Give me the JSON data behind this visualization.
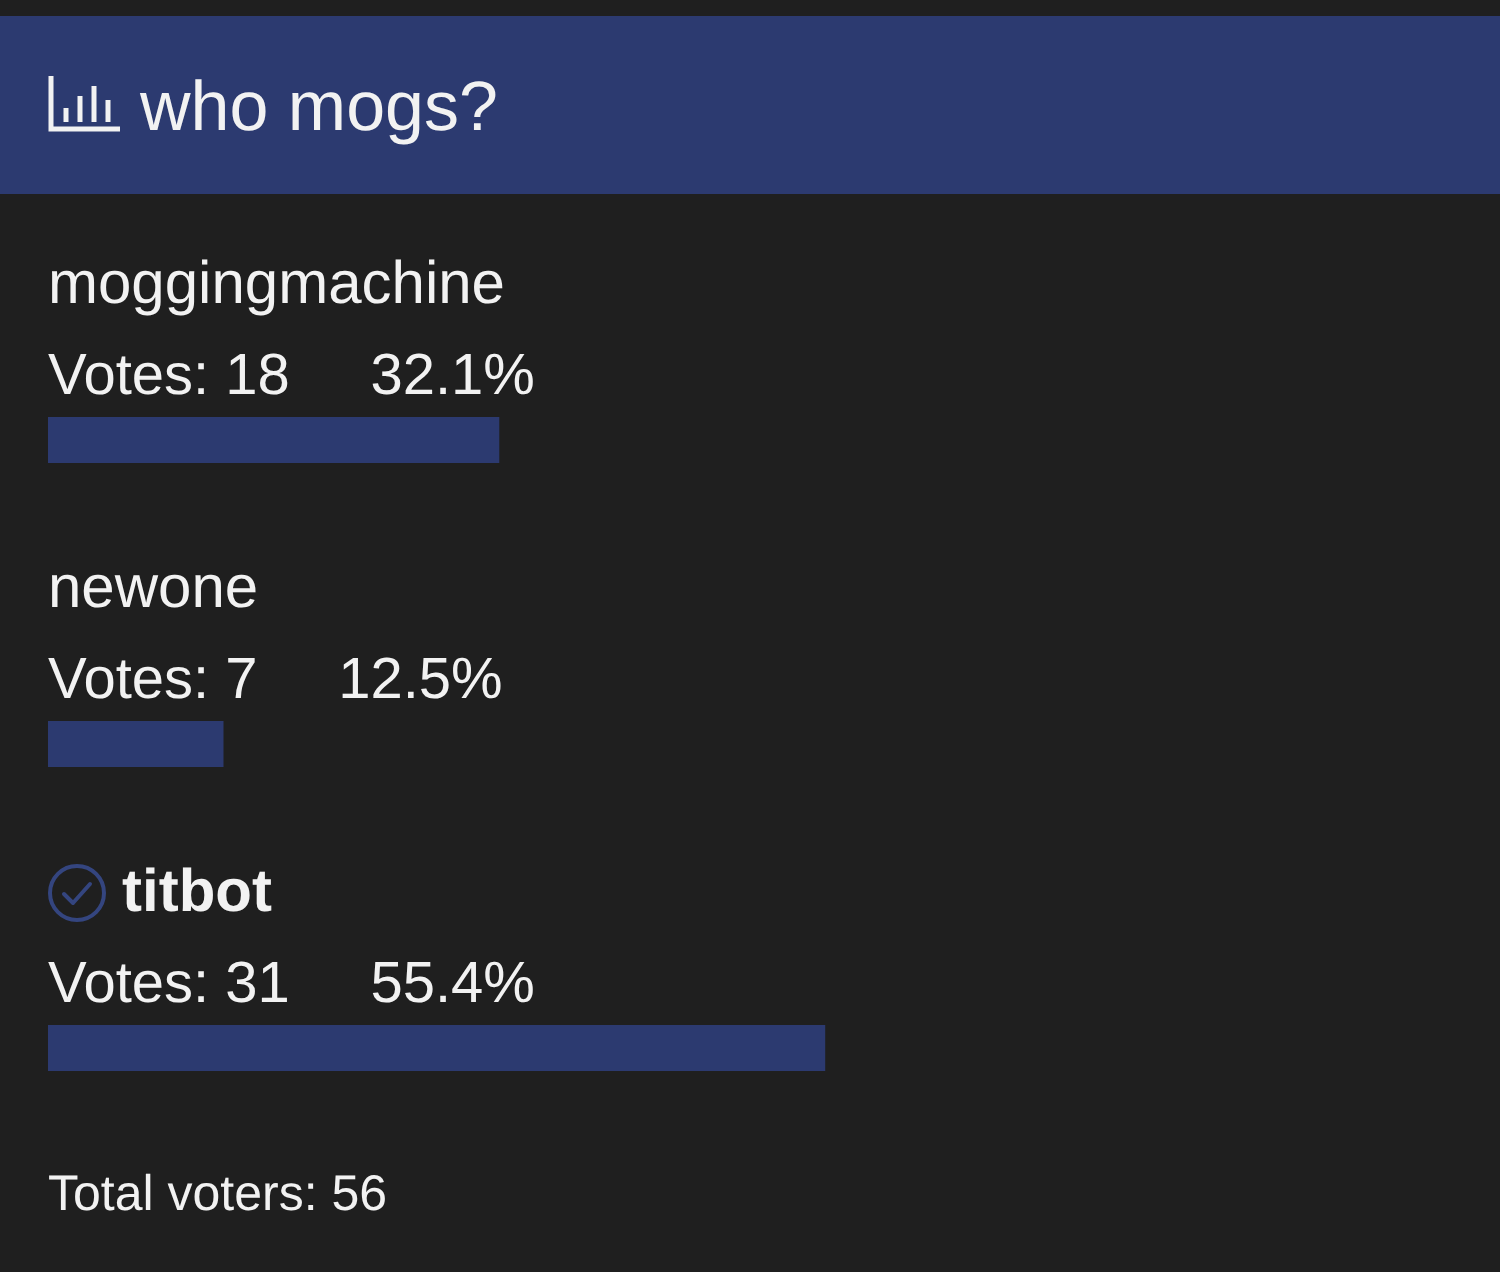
{
  "chart_data": {
    "type": "bar",
    "orientation": "horizontal",
    "title": "who mogs?",
    "categories": [
      "moggingmachine",
      "newone",
      "titbot"
    ],
    "values": [
      18,
      7,
      31
    ],
    "value_labels": [
      "Votes: 18     32.1%",
      "Votes: 7     12.5%",
      "Votes: 31     55.4%"
    ],
    "color": "#2c3a70",
    "tick_labels": "y",
    "annotations": [
      "Total voters: 56"
    ]
  }
}
